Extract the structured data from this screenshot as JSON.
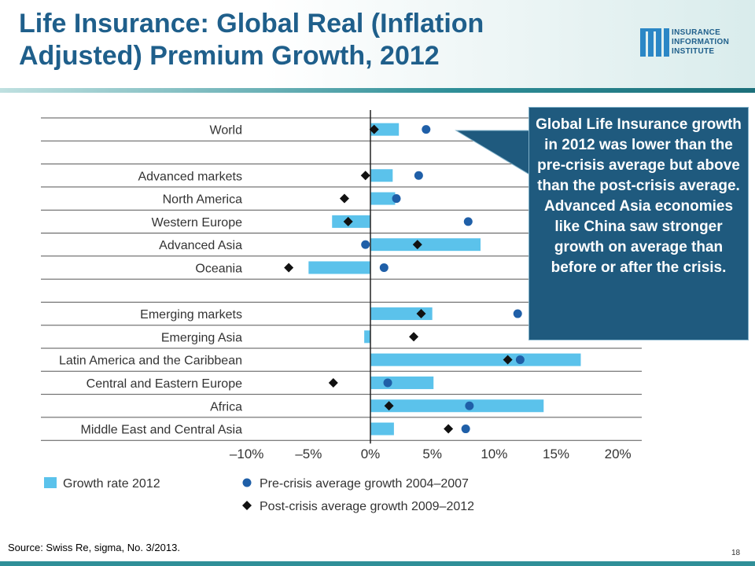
{
  "slide": {
    "title_line1": "Life Insurance:  Global Real (Inflation",
    "title_line2": "Adjusted)  Premium Growth, 2012",
    "logo_line1": "INSURANCE",
    "logo_line2": "INFORMATION",
    "logo_line3": "INSTITUTE",
    "callout": "Global Life Insurance growth in 2012 was lower than the pre-crisis average but above than the post-crisis average. Advanced Asia economies like China saw stronger growth on average than before or after the crisis.",
    "source": "Source: Swiss Re, sigma, No. 3/2013.",
    "page_number": "18",
    "colors": {
      "title": "#1f5f8b",
      "bar": "#5bc2eb",
      "pre_crisis": "#1f5fa8",
      "post_crisis": "#111111",
      "callout_bg": "#1f5a7e"
    }
  },
  "chart_data": {
    "type": "bar",
    "orientation": "horizontal",
    "xlim": [
      -10,
      20
    ],
    "xticks": [
      -10,
      -5,
      0,
      5,
      10,
      15,
      20
    ],
    "xtick_labels": [
      "–10%",
      "–5%",
      "0%",
      "5%",
      "10%",
      "15%",
      "20%"
    ],
    "categories": [
      "World",
      "",
      "Advanced markets",
      "North America",
      "Western Europe",
      "Advanced Asia",
      "Oceania",
      "",
      "Emerging markets",
      "Emerging Asia",
      "Latin America and the Caribbean",
      "Central and Eastern Europe",
      "Africa",
      "Middle East and Central Asia"
    ],
    "series": [
      {
        "name": "Growth rate 2012",
        "marker": "bar",
        "values": [
          2.3,
          null,
          1.8,
          2.0,
          -3.1,
          8.9,
          -5.0,
          null,
          5.0,
          -0.5,
          17.0,
          5.1,
          14.0,
          1.9
        ]
      },
      {
        "name": "Pre-crisis average growth 2004–2007",
        "marker": "circle",
        "values": [
          4.5,
          null,
          3.9,
          2.1,
          7.9,
          -0.4,
          1.1,
          null,
          11.9,
          null,
          12.1,
          1.4,
          8.0,
          7.7
        ]
      },
      {
        "name": "Post-crisis average growth 2009–2012",
        "marker": "diamond",
        "values": [
          0.3,
          null,
          -0.4,
          -2.1,
          -1.8,
          3.8,
          -6.6,
          null,
          4.1,
          3.5,
          11.1,
          -3.0,
          1.5,
          6.3
        ]
      }
    ]
  }
}
